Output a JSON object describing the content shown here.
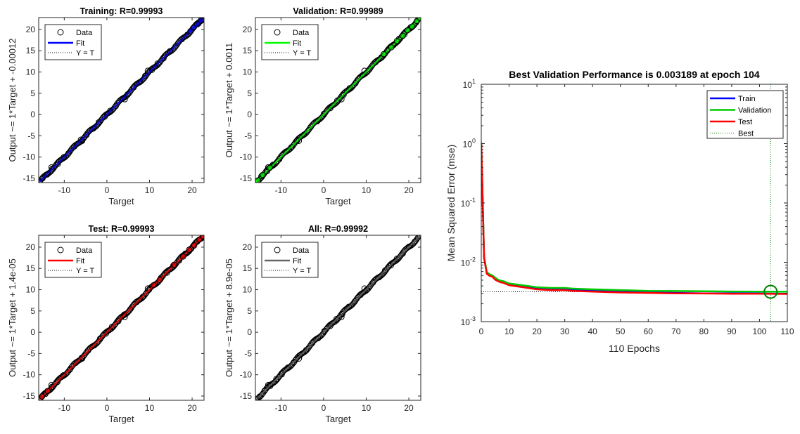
{
  "chart_data": [
    {
      "type": "scatter",
      "panel": "training",
      "title": "Training: R=0.99993",
      "xlabel": "Target",
      "ylabel": "Output ~= 1*Target + -0.00012",
      "xlim": [
        -16,
        22.8
      ],
      "ylim": [
        -16,
        22.8
      ],
      "xticks": [
        -10,
        0,
        10,
        20
      ],
      "yticks": [
        -15,
        -10,
        -5,
        0,
        5,
        10,
        15,
        20
      ],
      "fit_color": "#0000ff",
      "fit": {
        "slope": 1,
        "intercept": -0.00012
      },
      "legend": {
        "placement": "top-left",
        "entries": [
          "Data",
          "Fit",
          "Y = T"
        ]
      },
      "x": [
        -15.9,
        -15.1,
        -14.0,
        -12.8,
        -11.5,
        -10.1,
        -9.0,
        -7.6,
        -6.1,
        -4.8,
        -3.2,
        -1.9,
        -0.5,
        0.8,
        2.1,
        3.6,
        4.9,
        6.3,
        7.7,
        9.0,
        10.6,
        11.9,
        13.3,
        14.8,
        16.1,
        17.6,
        18.9,
        20.2,
        21.5,
        22.6
      ],
      "y": [
        -15.9,
        -15.0,
        -14.1,
        -12.7,
        -11.6,
        -10.0,
        -9.1,
        -7.5,
        -5.9,
        -4.8,
        -3.3,
        -1.8,
        -0.5,
        0.9,
        2.0,
        3.7,
        4.8,
        6.4,
        7.6,
        9.1,
        10.5,
        12.0,
        13.2,
        14.9,
        16.0,
        17.7,
        18.8,
        20.3,
        21.4,
        22.7
      ],
      "highlight_x": [
        19.6,
        20.4,
        21.2,
        22.0
      ],
      "highlight_y": [
        19.6,
        20.5,
        21.2,
        22.1
      ]
    },
    {
      "type": "scatter",
      "panel": "validation",
      "title": "Validation: R=0.99989",
      "xlabel": "Target",
      "ylabel": "Output ~= 1*Target + 0.0011",
      "xlim": [
        -16,
        22.8
      ],
      "ylim": [
        -16,
        22.8
      ],
      "xticks": [
        -10,
        0,
        10,
        20
      ],
      "yticks": [
        -15,
        -10,
        -5,
        0,
        5,
        10,
        15,
        20
      ],
      "fit_color": "#00ff00",
      "fit": {
        "slope": 1,
        "intercept": 0.0011
      },
      "legend": {
        "placement": "top-left",
        "entries": [
          "Data",
          "Fit",
          "Y = T"
        ]
      },
      "x": [
        -15.8,
        -14.6,
        -13.2,
        -11.9,
        -10.4,
        -8.8,
        -7.6,
        -6.2,
        -4.6,
        -3.0,
        -1.5,
        0.1,
        1.6,
        3.2,
        4.7,
        6.1,
        7.5,
        9.2,
        10.8,
        12.2,
        13.6,
        15.0,
        16.4,
        17.7,
        19.0,
        20.4,
        21.7,
        22.6
      ],
      "y": [
        -15.9,
        -14.5,
        -13.3,
        -11.8,
        -10.5,
        -8.7,
        -7.7,
        -6.1,
        -4.7,
        -2.9,
        -1.6,
        0.2,
        1.5,
        3.3,
        4.6,
        6.2,
        7.4,
        9.3,
        10.7,
        12.3,
        13.5,
        15.1,
        16.3,
        17.8,
        18.9,
        20.5,
        21.6,
        22.7
      ],
      "highlight_x": [
        -15.4,
        -14.3,
        -12.6,
        14.1,
        15.9,
        17.2,
        18.6,
        19.7,
        20.8,
        21.9,
        22.6
      ],
      "highlight_y": [
        -15.5,
        -14.2,
        -12.5,
        14.2,
        15.8,
        17.3,
        18.5,
        19.8,
        20.7,
        22.0,
        22.7
      ]
    },
    {
      "type": "scatter",
      "panel": "test",
      "title": "Test: R=0.99993",
      "xlabel": "Target",
      "ylabel": "Output ~= 1*Target + 1.4e-05",
      "xlim": [
        -16,
        22.8
      ],
      "ylim": [
        -16,
        22.8
      ],
      "xticks": [
        -10,
        0,
        10,
        20
      ],
      "yticks": [
        -15,
        -10,
        -5,
        0,
        5,
        10,
        15,
        20
      ],
      "fit_color": "#ff0000",
      "fit": {
        "slope": 1,
        "intercept": 1.4e-05
      },
      "legend": {
        "placement": "top-left",
        "entries": [
          "Data",
          "Fit",
          "Y = T"
        ]
      },
      "x": [
        -15.8,
        -14.4,
        -13.0,
        -11.6,
        -10.2,
        -8.7,
        -7.3,
        -5.9,
        -4.4,
        -3.0,
        -1.6,
        -0.2,
        1.2,
        2.7,
        4.1,
        5.5,
        7.0,
        8.4,
        9.9,
        11.3,
        12.7,
        14.1,
        15.6,
        17.0,
        18.4,
        19.8,
        21.2,
        22.5
      ],
      "y": [
        -15.7,
        -14.5,
        -12.9,
        -11.7,
        -10.1,
        -8.8,
        -7.2,
        -6.0,
        -4.3,
        -3.1,
        -1.5,
        -0.3,
        1.3,
        2.6,
        4.2,
        5.4,
        7.1,
        8.3,
        10.0,
        11.2,
        12.8,
        14.0,
        15.7,
        16.9,
        18.5,
        19.7,
        21.3,
        22.4
      ],
      "highlight_x": [
        -15.2,
        -13.9,
        11.0,
        12.4,
        15.8,
        17.9,
        19.3,
        20.5,
        21.7,
        22.5
      ],
      "highlight_y": [
        -15.1,
        -13.8,
        11.1,
        12.3,
        15.9,
        17.8,
        19.4,
        20.4,
        21.8,
        22.6
      ]
    },
    {
      "type": "scatter",
      "panel": "all",
      "title": "All: R=0.99992",
      "xlabel": "Target",
      "ylabel": "Output ~= 1*Target + 8.9e-05",
      "xlim": [
        -16,
        22.8
      ],
      "ylim": [
        -16,
        22.8
      ],
      "xticks": [
        -10,
        0,
        10,
        20
      ],
      "yticks": [
        -15,
        -10,
        -5,
        0,
        5,
        10,
        15,
        20
      ],
      "fit_color": "#666666",
      "fit": {
        "slope": 1,
        "intercept": 8.9e-05
      },
      "legend": {
        "placement": "top-left",
        "entries": [
          "Data",
          "Fit",
          "Y = T"
        ]
      },
      "x": [
        -15.9,
        -15.0,
        -13.8,
        -12.5,
        -11.1,
        -9.8,
        -8.4,
        -7.0,
        -5.5,
        -4.1,
        -2.7,
        -1.3,
        0.2,
        1.6,
        3.0,
        4.4,
        5.9,
        7.3,
        8.7,
        10.1,
        11.6,
        13.0,
        14.4,
        15.8,
        17.2,
        18.6,
        20.0,
        21.4,
        22.7
      ],
      "y": [
        -15.8,
        -15.1,
        -13.7,
        -12.6,
        -11.0,
        -9.9,
        -8.3,
        -7.1,
        -5.4,
        -4.2,
        -2.6,
        -1.4,
        0.3,
        1.5,
        3.1,
        4.3,
        6.0,
        7.2,
        8.8,
        10.0,
        11.7,
        12.9,
        14.5,
        15.7,
        17.3,
        18.5,
        20.1,
        21.3,
        22.6
      ],
      "highlight_x": [],
      "highlight_y": []
    },
    {
      "type": "line",
      "panel": "performance",
      "title": "Best Validation Performance is 0.003189 at epoch 104",
      "xlabel": "110 Epochs",
      "ylabel": "Mean Squared Error  (mse)",
      "yscale": "log",
      "xlim": [
        0,
        110
      ],
      "ylim": [
        0.001,
        10
      ],
      "xticks": [
        0,
        10,
        20,
        30,
        40,
        50,
        60,
        70,
        80,
        90,
        100,
        110
      ],
      "yticks": [
        {
          "value": 0.001,
          "base": "10",
          "exp": "-3"
        },
        {
          "value": 0.01,
          "base": "10",
          "exp": "-2"
        },
        {
          "value": 0.1,
          "base": "10",
          "exp": "-1"
        },
        {
          "value": 1,
          "base": "10",
          "exp": "0"
        },
        {
          "value": 10,
          "base": "10",
          "exp": "1"
        }
      ],
      "legend": {
        "placement": "top-right",
        "entries": [
          "Train",
          "Validation",
          "Test",
          "Best"
        ]
      },
      "series": [
        {
          "name": "Train",
          "color": "#0000ff",
          "x": [
            0,
            1,
            2,
            3,
            4,
            5,
            6,
            7,
            8,
            9,
            10,
            15,
            20,
            25,
            30,
            33,
            40,
            50,
            60,
            70,
            80,
            90,
            100,
            104,
            110
          ],
          "y": [
            1.0,
            0.012,
            0.0065,
            0.006,
            0.0058,
            0.0052,
            0.0049,
            0.0047,
            0.0046,
            0.0044,
            0.0042,
            0.0039,
            0.0036,
            0.0035,
            0.0035,
            0.0034,
            0.0033,
            0.0032,
            0.0031,
            0.00305,
            0.003,
            0.003,
            0.00298,
            0.00297,
            0.00296
          ]
        },
        {
          "name": "Validation",
          "color": "#00cc00",
          "x": [
            0,
            1,
            2,
            3,
            4,
            5,
            6,
            7,
            8,
            9,
            10,
            15,
            20,
            25,
            30,
            33,
            40,
            50,
            60,
            70,
            80,
            90,
            100,
            104,
            110
          ],
          "y": [
            1.05,
            0.0125,
            0.0068,
            0.0063,
            0.006,
            0.0055,
            0.0051,
            0.0049,
            0.0048,
            0.0046,
            0.0044,
            0.0041,
            0.0038,
            0.0037,
            0.0037,
            0.0036,
            0.0035,
            0.0034,
            0.0033,
            0.00328,
            0.00325,
            0.00322,
            0.0032,
            0.003189,
            0.00319
          ]
        },
        {
          "name": "Test",
          "color": "#ff0000",
          "x": [
            0,
            1,
            2,
            3,
            4,
            5,
            6,
            7,
            8,
            9,
            10,
            15,
            20,
            25,
            30,
            33,
            40,
            50,
            60,
            70,
            80,
            90,
            100,
            104,
            110
          ],
          "y": [
            0.98,
            0.0118,
            0.0064,
            0.0059,
            0.0057,
            0.0051,
            0.0048,
            0.0046,
            0.0045,
            0.0043,
            0.0041,
            0.0038,
            0.0035,
            0.0034,
            0.0034,
            0.0033,
            0.0032,
            0.0031,
            0.00305,
            0.003,
            0.00298,
            0.00296,
            0.00295,
            0.00294,
            0.00293
          ]
        }
      ],
      "best": {
        "epoch": 104,
        "value": 0.003189,
        "color": "#008000"
      }
    }
  ]
}
